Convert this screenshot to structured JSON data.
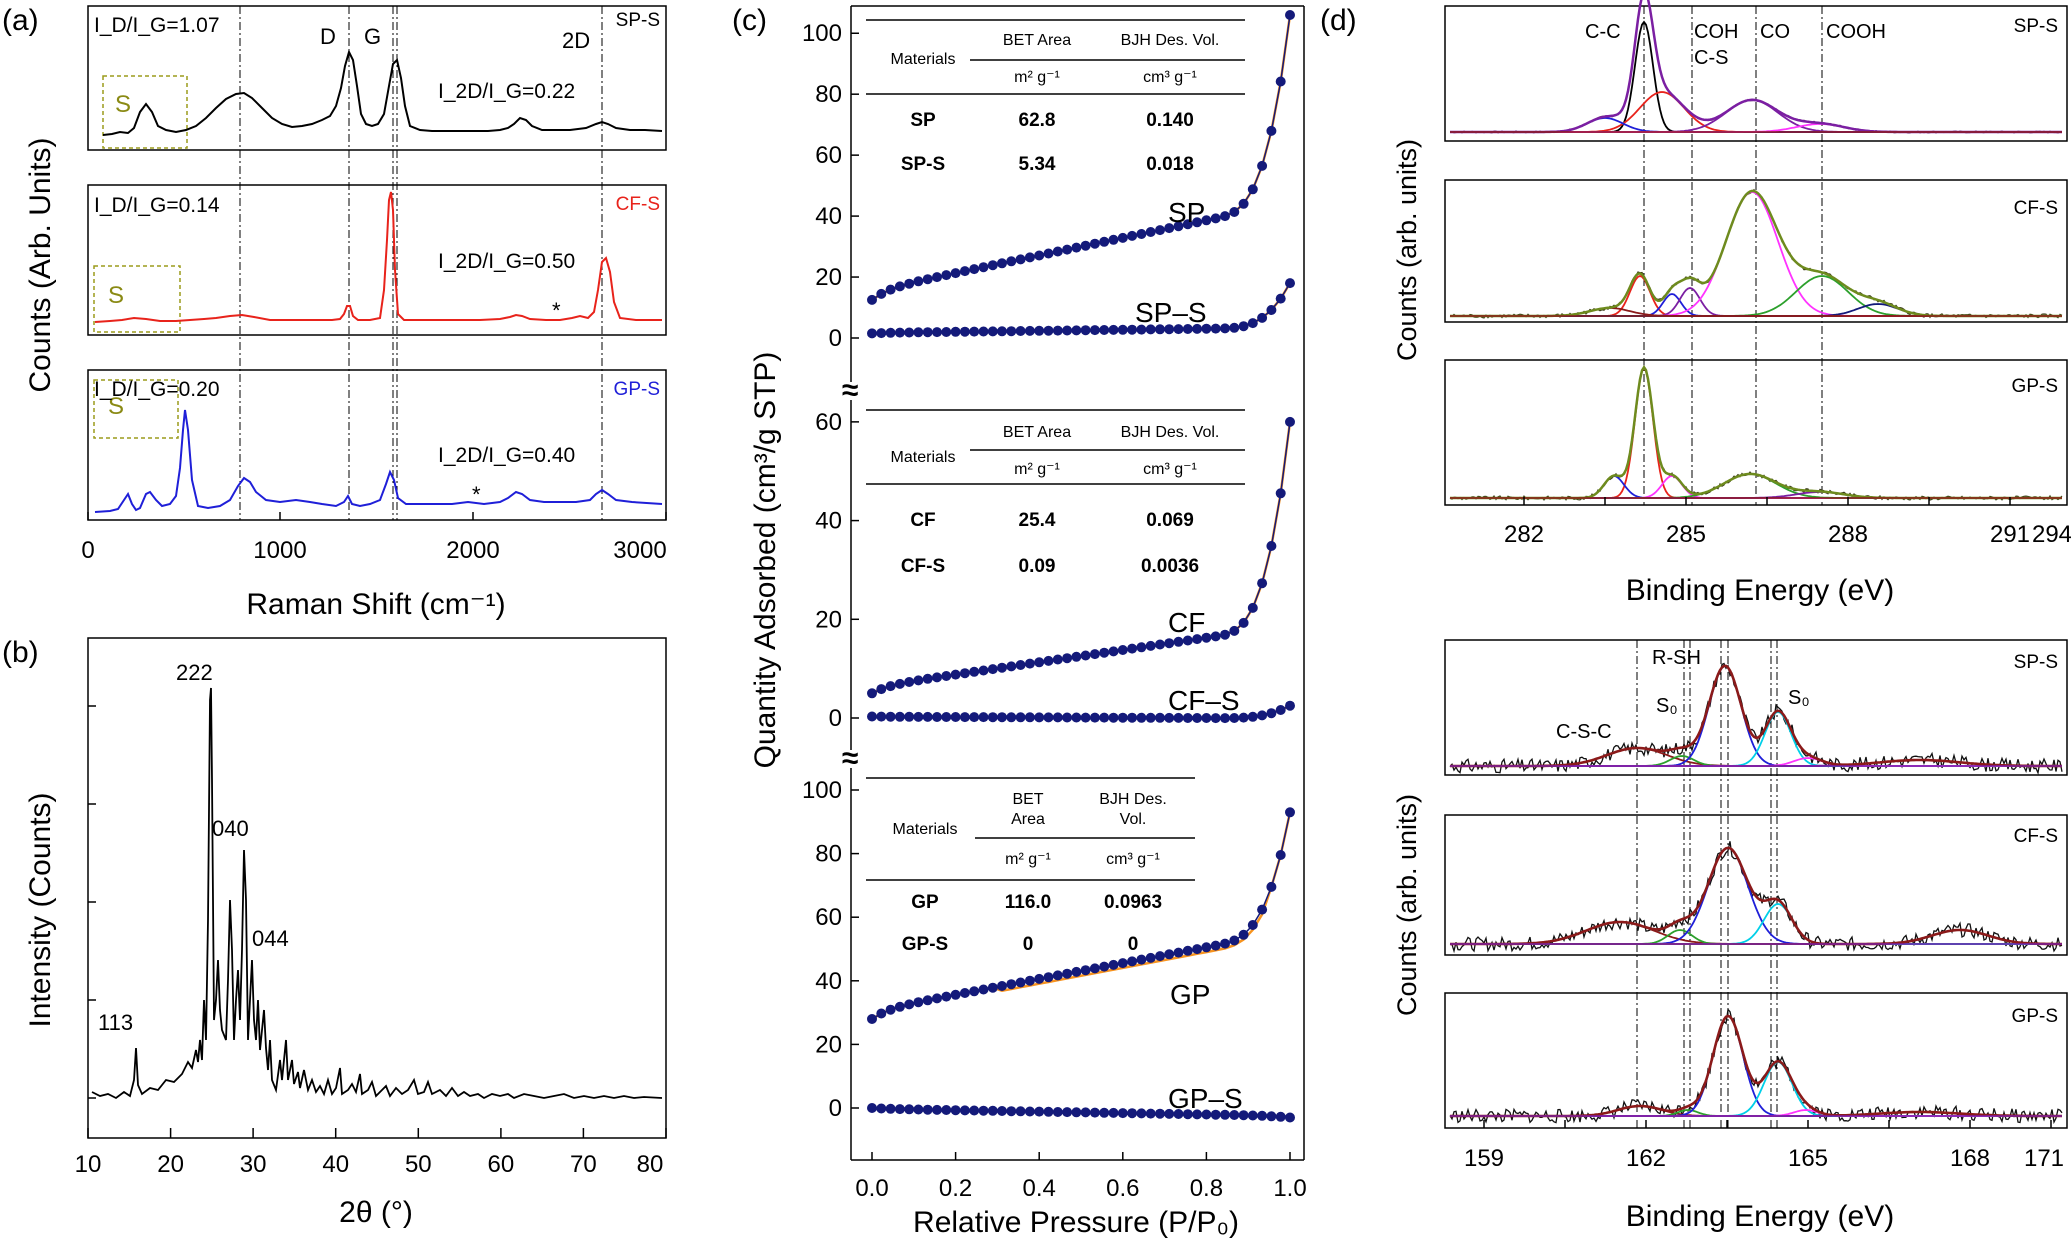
{
  "colors": {
    "black": "#000000",
    "red": "#e8231b",
    "blue": "#1f1fd8",
    "olive": "#8a8a14",
    "navy": "#141a7a",
    "orange": "#f7931e",
    "green": "#2ca02c",
    "magenta": "#ff33ff",
    "purple": "#7b1fa2",
    "cyan": "#00cfe8",
    "maroon": "#8b1a1a",
    "greenish": "#6e8b1e"
  },
  "panels": {
    "a": {
      "letter": "(a)",
      "ylabel": "Counts (Arb. Units)",
      "xlabel": "Raman Shift (cm⁻¹)",
      "xticks": [
        "0",
        "1000",
        "2000",
        "3000"
      ],
      "peak_labels": {
        "d": "D",
        "g": "G",
        "2d": "2D"
      },
      "s_label": "S",
      "traces": [
        {
          "name": "SP-S",
          "ratio1": "I_D/I_G=1.07",
          "ratio2": "I_2D/I_G=0.22"
        },
        {
          "name": "CF-S",
          "ratio1": "I_D/I_G=0.14",
          "ratio2": "I_2D/I_G=0.50",
          "star": "*"
        },
        {
          "name": "GP-S",
          "ratio1": "I_D/I_G=0.20",
          "ratio2": "I_2D/I_G=0.40",
          "star": "*"
        }
      ]
    },
    "b": {
      "letter": "(b)",
      "ylabel": "Intensity (Counts)",
      "xlabel": "2θ (°)",
      "xticks": [
        "10",
        "20",
        "30",
        "40",
        "50",
        "60",
        "70",
        "80"
      ],
      "peak_labels": [
        "113",
        "222",
        "040",
        "044"
      ]
    },
    "c": {
      "letter": "(c)",
      "ylabel": "Quantity Adsorbed (cm³/g STP)",
      "xlabel": "Relative Pressure (P/P₀)",
      "xticks": [
        "0.0",
        "0.2",
        "0.4",
        "0.6",
        "0.8",
        "1.0"
      ],
      "break_mark": "≈",
      "subplots": [
        {
          "yticks": [
            "0",
            "20",
            "40",
            "60",
            "80",
            "100"
          ],
          "labels": [
            "SP",
            "SP–S"
          ],
          "table": {
            "h1": "Materials",
            "h2": "BET Area",
            "h3": "BJH Des. Vol.",
            "u2": "m² g⁻¹",
            "u3": "cm³ g⁻¹",
            "rows": [
              [
                "SP",
                "62.8",
                "0.140"
              ],
              [
                "SP-S",
                "5.34",
                "0.018"
              ]
            ]
          }
        },
        {
          "yticks": [
            "0",
            "20",
            "40",
            "60"
          ],
          "labels": [
            "CF",
            "CF–S"
          ],
          "table": {
            "h1": "Materials",
            "h2": "BET Area",
            "h3": "BJH Des. Vol.",
            "u2": "m² g⁻¹",
            "u3": "cm³ g⁻¹",
            "rows": [
              [
                "CF",
                "25.4",
                "0.069"
              ],
              [
                "CF-S",
                "0.09",
                "0.0036"
              ]
            ]
          }
        },
        {
          "yticks": [
            "0",
            "20",
            "40",
            "60",
            "80",
            "100"
          ],
          "labels": [
            "GP",
            "GP–S"
          ],
          "table": {
            "h1": "Materials",
            "h2a": "BET",
            "h2b": "Area",
            "h3a": "BJH Des.",
            "h3b": "Vol.",
            "u2": "m² g⁻¹",
            "u3": "cm³ g⁻¹",
            "rows": [
              [
                "GP",
                "116.0",
                "0.0963"
              ],
              [
                "GP-S",
                "0",
                "0"
              ]
            ]
          }
        }
      ]
    },
    "d": {
      "letter": "(d)",
      "ylabel_top": "Counts (arb. units)",
      "ylabel_bottom": "Counts (arb. units)",
      "xlabel_top": "Binding Energy (eV)",
      "xlabel_bottom": "Binding Energy (eV)",
      "xticks_top": [
        "282",
        "285",
        "288",
        "291",
        "294"
      ],
      "xticks_bottom": [
        "159",
        "162",
        "165",
        "168",
        "171"
      ],
      "c1s_labels": [
        "C-C",
        "COH",
        "C-S",
        "CO",
        "COOH"
      ],
      "s2p_labels": [
        "C-S-C",
        "S₀",
        "R-SH",
        "S₀"
      ],
      "c1s_traces": [
        "SP-S",
        "CF-S",
        "GP-S"
      ],
      "s2p_traces": [
        "SP-S",
        "CF-S",
        "GP-S"
      ]
    }
  },
  "chart_data": [
    {
      "type": "line",
      "panel": "a",
      "xlabel": "Raman Shift (cm⁻¹)",
      "ylabel": "Counts (Arb. Units)",
      "xlim": [
        0,
        3000
      ],
      "series": [
        {
          "name": "SP-S",
          "peaks_x": [
            310,
            800,
            1360,
            1590,
            2270,
            2700
          ],
          "peaks_y": [
            0.45,
            0.6,
            1.0,
            0.95,
            0.25,
            0.2
          ]
        },
        {
          "name": "CF-S",
          "peaks_x": [
            300,
            800,
            1360,
            1580,
            2450,
            2700
          ],
          "peaks_y": [
            0.06,
            0.08,
            0.18,
            1.0,
            0.04,
            0.5
          ]
        },
        {
          "name": "GP-S",
          "peaks_x": [
            220,
            320,
            480,
            800,
            1360,
            1580,
            2270,
            2700
          ],
          "peaks_y": [
            0.2,
            0.25,
            1.0,
            0.3,
            0.08,
            0.25,
            0.12,
            0.12
          ]
        }
      ]
    },
    {
      "type": "line",
      "panel": "b",
      "xlabel": "2θ (°)",
      "ylabel": "Intensity (Counts)",
      "xlim": [
        10,
        80
      ],
      "peaks": [
        {
          "x": 15.4,
          "label": "113",
          "y": 0.12
        },
        {
          "x": 23.1,
          "label": "222",
          "y": 1.0
        },
        {
          "x": 25.9,
          "label": "",
          "y": 0.45
        },
        {
          "x": 27.8,
          "label": "040",
          "y": 0.62
        },
        {
          "x": 28.7,
          "label": "",
          "y": 0.3
        },
        {
          "x": 31.5,
          "label": "044",
          "y": 0.23
        }
      ]
    },
    {
      "type": "scatter",
      "panel": "c",
      "xlabel": "Relative Pressure (P/P₀)",
      "ylabel": "Quantity Adsorbed (cm³/g STP)",
      "xlim": [
        0,
        1
      ],
      "series": [
        {
          "name": "SP",
          "y_start": 12.5,
          "y_at_0_8": 38,
          "y_end": 106
        },
        {
          "name": "SP–S",
          "y_start": 1.5,
          "y_at_0_8": 3,
          "y_end": 18
        },
        {
          "name": "CF",
          "y_start": 5,
          "y_at_0_8": 16,
          "y_end": 60
        },
        {
          "name": "CF–S",
          "y_start": 0.3,
          "y_at_0_8": 0,
          "y_end": 2.5
        },
        {
          "name": "GP",
          "y_start": 28,
          "y_at_0_8": 50,
          "y_end": 93
        },
        {
          "name": "GP–S",
          "y_start": 0,
          "y_at_0_8": -2,
          "y_end": -3
        }
      ],
      "ylims": [
        [
          0,
          105
        ],
        [
          0,
          62
        ],
        [
          0,
          100
        ]
      ]
    },
    {
      "type": "line",
      "panel": "d-C1s",
      "xlabel": "Binding Energy (eV)",
      "xlim": [
        280.5,
        295
      ],
      "components": [
        {
          "label": "C-C",
          "x": 284.8
        },
        {
          "label": "COH",
          "x": 286.1
        },
        {
          "label": "C-S",
          "x": 286.1
        },
        {
          "label": "CO",
          "x": 287.5
        },
        {
          "label": "COOH",
          "x": 289.3
        }
      ]
    },
    {
      "type": "line",
      "panel": "d-S2p",
      "xlabel": "Binding Energy (eV)",
      "xlim": [
        157.8,
        172
      ],
      "components": [
        {
          "label": "C-S-C",
          "x": 162.4
        },
        {
          "label": "S₀",
          "x": 163.7
        },
        {
          "label": "R-SH",
          "x": 164.5
        },
        {
          "label": "S₀",
          "x": 165.7
        }
      ]
    }
  ]
}
